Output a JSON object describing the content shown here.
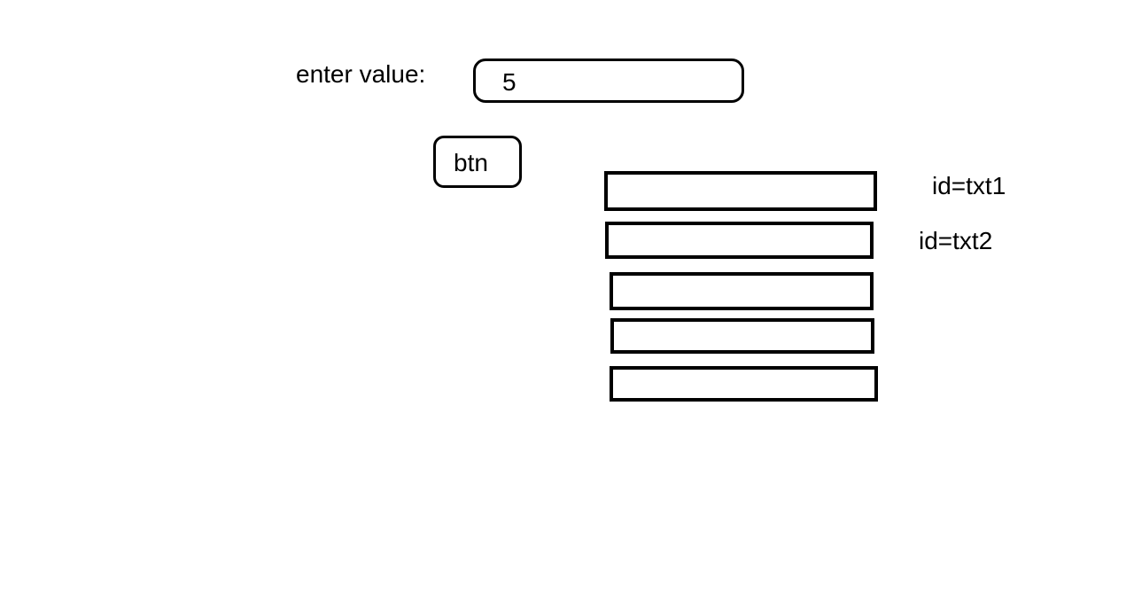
{
  "input": {
    "label": "enter value:",
    "value": "5"
  },
  "button": {
    "label": "btn"
  },
  "textboxes": {
    "txt1_label": "id=txt1",
    "txt2_label": "id=txt2"
  }
}
